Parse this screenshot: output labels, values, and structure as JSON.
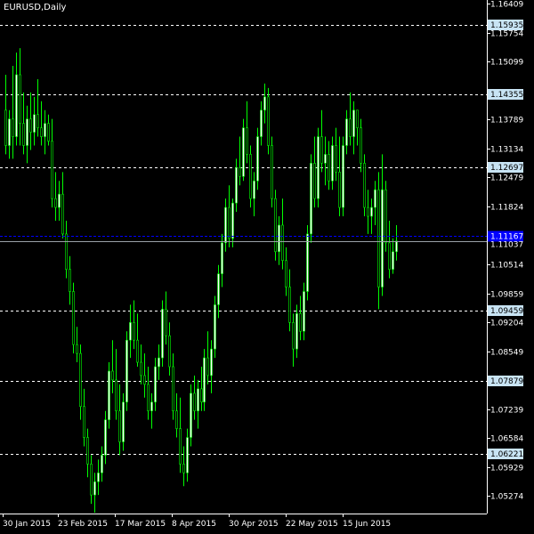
{
  "chart_data": {
    "type": "candlestick",
    "title": "EURUSD,Daily",
    "ylim": [
      1.048,
      1.16409
    ],
    "y_ticks": [
      "1.16409",
      "1.15754",
      "1.15099",
      "1.13789",
      "1.13134",
      "1.12479",
      "1.11824",
      "1.10514",
      "1.09859",
      "1.09204",
      "1.08549",
      "1.07239",
      "1.06584",
      "1.05929",
      "1.05274"
    ],
    "level_lines": [
      "1.15935",
      "1.14355",
      "1.12697",
      "1.09459",
      "1.07879",
      "1.06221"
    ],
    "bid_price": "1.11167",
    "current_price": "1.11037",
    "x_ticks": [
      "30 Jan 2015",
      "23 Feb 2015",
      "17 Mar 2015",
      "8 Apr 2015",
      "30 Apr 2015",
      "22 May 2015",
      "15 Jun 2015"
    ],
    "bar_colors": {
      "up": "#ffffff",
      "down": "#000000",
      "wick": "#00ff00",
      "level": "#ffffff",
      "bid": "#0000ff"
    },
    "candles": [
      [
        1.14,
        1.148,
        1.13,
        1.132
      ],
      [
        1.132,
        1.14,
        1.129,
        1.138
      ],
      [
        1.138,
        1.15,
        1.129,
        1.134
      ],
      [
        1.134,
        1.153,
        1.132,
        1.148
      ],
      [
        1.148,
        1.154,
        1.132,
        1.137
      ],
      [
        1.137,
        1.144,
        1.13,
        1.132
      ],
      [
        1.132,
        1.141,
        1.128,
        1.138
      ],
      [
        1.138,
        1.144,
        1.131,
        1.135
      ],
      [
        1.135,
        1.143,
        1.132,
        1.139
      ],
      [
        1.139,
        1.147,
        1.134,
        1.136
      ],
      [
        1.136,
        1.142,
        1.132,
        1.134
      ],
      [
        1.134,
        1.14,
        1.13,
        1.137
      ],
      [
        1.137,
        1.139,
        1.132,
        1.133
      ],
      [
        1.133,
        1.138,
        1.118,
        1.12
      ],
      [
        1.12,
        1.126,
        1.115,
        1.118
      ],
      [
        1.118,
        1.124,
        1.115,
        1.121
      ],
      [
        1.121,
        1.126,
        1.111,
        1.112
      ],
      [
        1.112,
        1.115,
        1.102,
        1.104
      ],
      [
        1.104,
        1.107,
        1.096,
        1.099
      ],
      [
        1.099,
        1.101,
        1.085,
        1.087
      ],
      [
        1.087,
        1.091,
        1.083,
        1.085
      ],
      [
        1.085,
        1.087,
        1.07,
        1.073
      ],
      [
        1.073,
        1.077,
        1.064,
        1.066
      ],
      [
        1.066,
        1.068,
        1.057,
        1.06
      ],
      [
        1.06,
        1.062,
        1.051,
        1.053
      ],
      [
        1.053,
        1.058,
        1.049,
        1.056
      ],
      [
        1.056,
        1.061,
        1.053,
        1.058
      ],
      [
        1.058,
        1.064,
        1.056,
        1.062
      ],
      [
        1.062,
        1.072,
        1.06,
        1.07
      ],
      [
        1.07,
        1.083,
        1.068,
        1.081
      ],
      [
        1.081,
        1.088,
        1.076,
        1.079
      ],
      [
        1.079,
        1.086,
        1.07,
        1.072
      ],
      [
        1.072,
        1.078,
        1.062,
        1.065
      ],
      [
        1.065,
        1.076,
        1.063,
        1.074
      ],
      [
        1.074,
        1.09,
        1.072,
        1.088
      ],
      [
        1.088,
        1.096,
        1.084,
        1.092
      ],
      [
        1.092,
        1.097,
        1.086,
        1.088
      ],
      [
        1.088,
        1.094,
        1.082,
        1.083
      ],
      [
        1.083,
        1.087,
        1.078,
        1.08
      ],
      [
        1.08,
        1.085,
        1.075,
        1.078
      ],
      [
        1.078,
        1.082,
        1.07,
        1.072
      ],
      [
        1.072,
        1.076,
        1.068,
        1.074
      ],
      [
        1.074,
        1.084,
        1.072,
        1.082
      ],
      [
        1.082,
        1.087,
        1.079,
        1.084
      ],
      [
        1.084,
        1.097,
        1.082,
        1.095
      ],
      [
        1.095,
        1.099,
        1.087,
        1.089
      ],
      [
        1.089,
        1.092,
        1.08,
        1.082
      ],
      [
        1.082,
        1.085,
        1.07,
        1.072
      ],
      [
        1.072,
        1.076,
        1.066,
        1.068
      ],
      [
        1.068,
        1.075,
        1.058,
        1.06
      ],
      [
        1.06,
        1.064,
        1.055,
        1.058
      ],
      [
        1.058,
        1.068,
        1.056,
        1.066
      ],
      [
        1.066,
        1.078,
        1.064,
        1.076
      ],
      [
        1.076,
        1.08,
        1.07,
        1.072
      ],
      [
        1.072,
        1.079,
        1.068,
        1.077
      ],
      [
        1.077,
        1.082,
        1.072,
        1.074
      ],
      [
        1.074,
        1.086,
        1.072,
        1.084
      ],
      [
        1.084,
        1.09,
        1.078,
        1.08
      ],
      [
        1.08,
        1.088,
        1.076,
        1.086
      ],
      [
        1.086,
        1.098,
        1.084,
        1.096
      ],
      [
        1.096,
        1.105,
        1.093,
        1.103
      ],
      [
        1.103,
        1.112,
        1.1,
        1.11
      ],
      [
        1.11,
        1.12,
        1.108,
        1.118
      ],
      [
        1.118,
        1.123,
        1.109,
        1.111
      ],
      [
        1.111,
        1.12,
        1.109,
        1.119
      ],
      [
        1.119,
        1.129,
        1.117,
        1.127
      ],
      [
        1.127,
        1.134,
        1.123,
        1.125
      ],
      [
        1.125,
        1.138,
        1.124,
        1.136
      ],
      [
        1.136,
        1.142,
        1.128,
        1.13
      ],
      [
        1.13,
        1.132,
        1.118,
        1.12
      ],
      [
        1.12,
        1.126,
        1.116,
        1.124
      ],
      [
        1.124,
        1.136,
        1.122,
        1.134
      ],
      [
        1.134,
        1.142,
        1.132,
        1.14
      ],
      [
        1.14,
        1.146,
        1.137,
        1.143
      ],
      [
        1.143,
        1.145,
        1.13,
        1.132
      ],
      [
        1.132,
        1.134,
        1.118,
        1.12
      ],
      [
        1.12,
        1.122,
        1.106,
        1.108
      ],
      [
        1.108,
        1.116,
        1.105,
        1.114
      ],
      [
        1.114,
        1.12,
        1.104,
        1.106
      ],
      [
        1.106,
        1.109,
        1.098,
        1.1
      ],
      [
        1.1,
        1.104,
        1.09,
        1.092
      ],
      [
        1.092,
        1.094,
        1.082,
        1.086
      ],
      [
        1.086,
        1.096,
        1.084,
        1.094
      ],
      [
        1.094,
        1.098,
        1.088,
        1.09
      ],
      [
        1.09,
        1.101,
        1.088,
        1.099
      ],
      [
        1.099,
        1.114,
        1.097,
        1.112
      ],
      [
        1.112,
        1.13,
        1.11,
        1.128
      ],
      [
        1.128,
        1.134,
        1.118,
        1.12
      ],
      [
        1.12,
        1.136,
        1.118,
        1.134
      ],
      [
        1.134,
        1.14,
        1.126,
        1.128
      ],
      [
        1.128,
        1.134,
        1.123,
        1.13
      ],
      [
        1.13,
        1.133,
        1.122,
        1.124
      ],
      [
        1.124,
        1.134,
        1.122,
        1.132
      ],
      [
        1.132,
        1.136,
        1.124,
        1.126
      ],
      [
        1.126,
        1.134,
        1.116,
        1.118
      ],
      [
        1.118,
        1.134,
        1.116,
        1.132
      ],
      [
        1.132,
        1.14,
        1.13,
        1.138
      ],
      [
        1.138,
        1.144,
        1.132,
        1.134
      ],
      [
        1.134,
        1.142,
        1.13,
        1.14
      ],
      [
        1.14,
        1.14,
        1.132,
        1.136
      ],
      [
        1.136,
        1.138,
        1.126,
        1.128
      ],
      [
        1.128,
        1.13,
        1.116,
        1.118
      ],
      [
        1.118,
        1.122,
        1.112,
        1.116
      ],
      [
        1.116,
        1.12,
        1.112,
        1.118
      ],
      [
        1.118,
        1.124,
        1.114,
        1.122
      ],
      [
        1.122,
        1.126,
        1.095,
        1.1
      ],
      [
        1.1,
        1.13,
        1.098,
        1.122
      ],
      [
        1.122,
        1.124,
        1.108,
        1.11
      ],
      [
        1.11,
        1.115,
        1.102,
        1.104
      ],
      [
        1.104,
        1.111,
        1.103,
        1.108
      ],
      [
        1.108,
        1.114,
        1.106,
        1.1104
      ]
    ]
  }
}
